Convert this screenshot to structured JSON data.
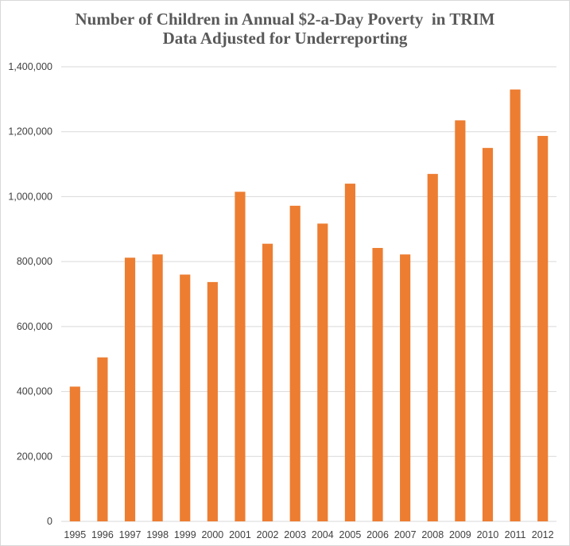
{
  "chart_data": {
    "type": "bar",
    "title_line1": "Number of Children in Annual $2-a-Day Poverty  in TRIM",
    "title_line2": "Data Adjusted for Underreporting",
    "xlabel": "",
    "ylabel": "",
    "categories": [
      "1995",
      "1996",
      "1997",
      "1998",
      "1999",
      "2000",
      "2001",
      "2002",
      "2003",
      "2004",
      "2005",
      "2006",
      "2007",
      "2008",
      "2009",
      "2010",
      "2011",
      "2012"
    ],
    "values": [
      415000,
      505000,
      812000,
      822000,
      760000,
      737000,
      1015000,
      855000,
      972000,
      917000,
      1040000,
      842000,
      822000,
      1070000,
      1235000,
      1150000,
      1330000,
      1187000
    ],
    "ylim": [
      0,
      1400000
    ],
    "yticks": [
      "0",
      "200,000",
      "400,000",
      "600,000",
      "800,000",
      "1,000,000",
      "1,200,000",
      "1,400,000"
    ],
    "ytick_values": [
      0,
      200000,
      400000,
      600000,
      800000,
      1000000,
      1200000,
      1400000
    ],
    "grid": true,
    "legend": "none",
    "bar_color": "#ED7D31",
    "grid_color": "#D9D9D9"
  }
}
